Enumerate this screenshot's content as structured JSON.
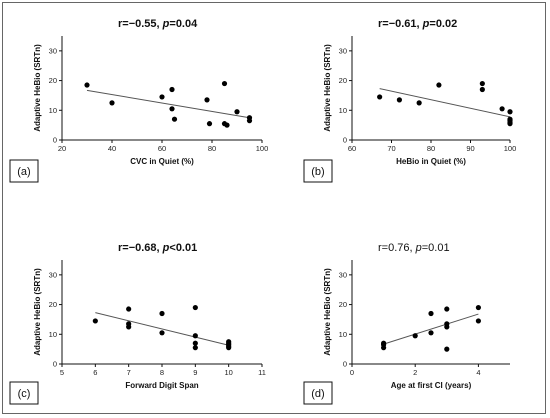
{
  "chart_data": [
    {
      "type": "scatter",
      "panel": "(a)",
      "title": {
        "r_prefix": "r=−0.55, ",
        "p_label": "p",
        "p_rest": "=0.04"
      },
      "title_bold": true,
      "xlabel": "CVC in Quiet (%)",
      "ylabel": "Adaptive HeBio (SRTn)",
      "xlim": [
        20,
        100
      ],
      "ylim": [
        0,
        35
      ],
      "xticks": [
        "20",
        "40",
        "60",
        "80",
        "100"
      ],
      "yticks": [
        "0",
        "10",
        "20",
        "30"
      ],
      "x": [
        30,
        40,
        60,
        64,
        64,
        65,
        78,
        79,
        85,
        85,
        86,
        90,
        95,
        95
      ],
      "y": [
        18.5,
        12.5,
        14.5,
        17,
        10.5,
        7,
        13.5,
        5.5,
        19,
        5.5,
        5,
        9.5,
        7.5,
        6.5
      ],
      "trend": [
        [
          30,
          16.7
        ],
        [
          95,
          7.5
        ]
      ]
    },
    {
      "type": "scatter",
      "panel": "(b)",
      "title": {
        "r_prefix": "r=−0.61, ",
        "p_label": "p",
        "p_rest": "=0.02"
      },
      "title_bold": true,
      "xlabel": "HeBio in Quiet (%)",
      "ylabel": "Adaptive HeBio (SRTn)",
      "xlim": [
        60,
        100
      ],
      "ylim": [
        0,
        35
      ],
      "xticks": [
        "60",
        "70",
        "80",
        "90",
        "100"
      ],
      "yticks": [
        "0",
        "10",
        "20",
        "30"
      ],
      "x": [
        67,
        72,
        77,
        82,
        93,
        93,
        98,
        100,
        100,
        100,
        100,
        100
      ],
      "y": [
        14.5,
        13.5,
        12.5,
        18.5,
        19,
        17,
        10.5,
        9.5,
        7,
        6.5,
        6,
        5.5
      ],
      "trend": [
        [
          67,
          17.3
        ],
        [
          100,
          7.8
        ]
      ]
    },
    {
      "type": "scatter",
      "panel": "(c)",
      "title": {
        "r_prefix": "r=−0.68, ",
        "p_label": "p",
        "p_rest": "<0.01"
      },
      "title_bold": true,
      "xlabel": "Forward Digit Span",
      "ylabel": "Adaptive HeBio (SRTn)",
      "xlim": [
        5,
        11
      ],
      "ylim": [
        0,
        35
      ],
      "xticks": [
        "5",
        "6",
        "7",
        "8",
        "9",
        "10",
        "11"
      ],
      "yticks": [
        "0",
        "10",
        "20",
        "30"
      ],
      "x": [
        6,
        7,
        7,
        7,
        8,
        8,
        9,
        9,
        9,
        9,
        10,
        10,
        10,
        10,
        10
      ],
      "y": [
        14.5,
        18.5,
        13.5,
        12.5,
        17,
        10.5,
        19,
        9.5,
        7,
        5.5,
        7.5,
        7,
        6.5,
        6,
        5.5
      ],
      "trend": [
        [
          6,
          17.3
        ],
        [
          10,
          6.3
        ]
      ]
    },
    {
      "type": "scatter",
      "panel": "(d)",
      "title": {
        "r_prefix": "r=0.76, ",
        "p_label": "p",
        "p_rest": "=0.01"
      },
      "title_bold": false,
      "xlabel": "Age at first CI (years)",
      "ylabel": "Adaptive HeBio (SRTn)",
      "xlim": [
        0,
        5
      ],
      "ylim": [
        0,
        35
      ],
      "xticks": [
        "0",
        "2",
        "4"
      ],
      "yticks": [
        "0",
        "10",
        "20",
        "30"
      ],
      "x": [
        1,
        1,
        1,
        2,
        2.5,
        2.5,
        3,
        3,
        3,
        3,
        4,
        4
      ],
      "y": [
        7,
        6.5,
        5.5,
        9.5,
        17,
        10.5,
        18.5,
        13.5,
        12.5,
        5,
        19,
        14.5
      ],
      "trend": [
        [
          1,
          6.7
        ],
        [
          4,
          16.8
        ]
      ]
    }
  ]
}
